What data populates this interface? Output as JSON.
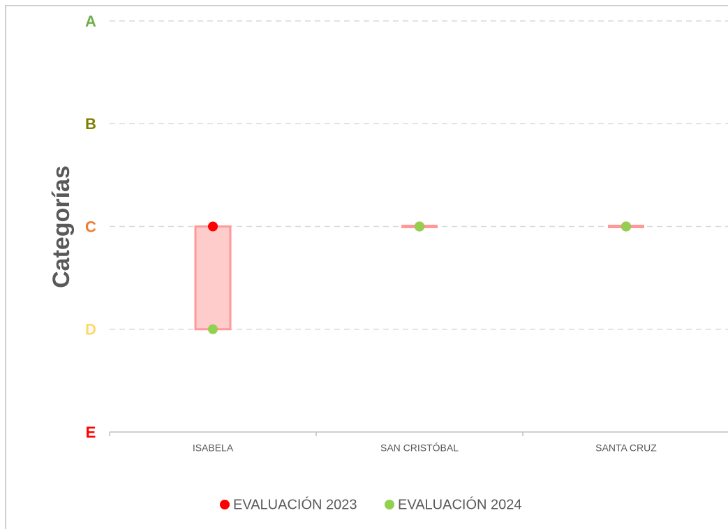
{
  "chart_data": {
    "type": "dumbbell",
    "y_label": "Categorías",
    "categories": [
      "ISABELA",
      "SAN CRISTÓBAL",
      "SANTA CRUZ"
    ],
    "series": [
      {
        "name": "EVALUACIÓN 2023",
        "color": "#ff0000",
        "values": [
          3,
          3,
          3
        ]
      },
      {
        "name": "EVALUACIÓN 2024",
        "color": "#92d050",
        "values": [
          2,
          3,
          3
        ]
      }
    ],
    "range_fill": "#ffcccc",
    "range_stroke": "#ff9999",
    "ylim": [
      1,
      5
    ],
    "yticks": [
      {
        "value": 5,
        "label": "A"
      },
      {
        "value": 4,
        "label": "B"
      },
      {
        "value": 3,
        "label": "C"
      },
      {
        "value": 2,
        "label": "D"
      },
      {
        "value": 1,
        "label": "E"
      }
    ],
    "ytick_colors": [
      "#70ad47",
      "#7f7f00",
      "#ed7d31",
      "#ffd966",
      "#ff0000"
    ],
    "grid": true,
    "legend": "bottom"
  }
}
